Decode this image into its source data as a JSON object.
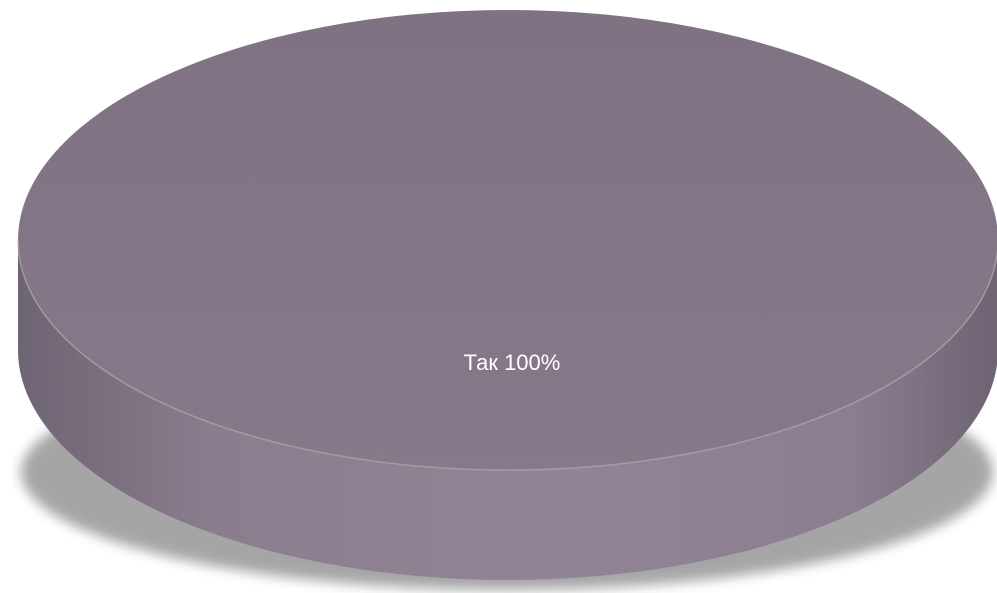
{
  "chart_data": {
    "type": "pie",
    "style": "3d",
    "title": "",
    "categories": [
      "Так"
    ],
    "values": [
      100
    ],
    "labels": [
      "Так 100%"
    ],
    "colors": [
      "#857788"
    ],
    "legend": "none"
  }
}
